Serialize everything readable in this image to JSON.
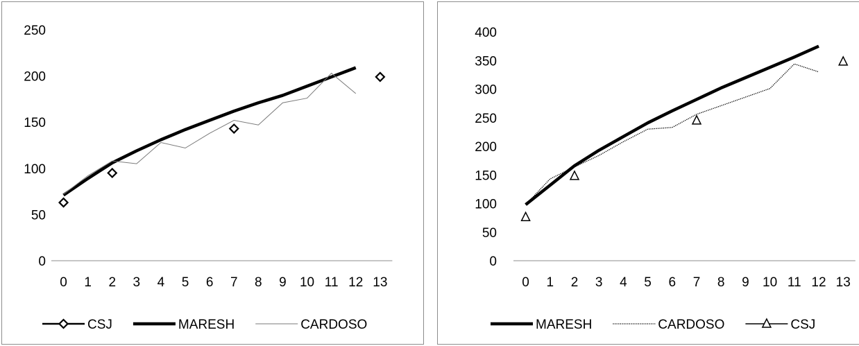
{
  "chart_data": [
    {
      "type": "line",
      "x": [
        0,
        1,
        2,
        3,
        4,
        5,
        6,
        7,
        8,
        9,
        10,
        11,
        12,
        13
      ],
      "xticks": [
        "0",
        "1",
        "2",
        "3",
        "4",
        "5",
        "6",
        "7",
        "8",
        "9",
        "10",
        "11",
        "12",
        "13"
      ],
      "ylim": [
        0,
        250
      ],
      "yticks": [
        "0",
        "50",
        "100",
        "150",
        "200",
        "250"
      ],
      "grid": false,
      "legend_position": "bottom",
      "series": [
        {
          "name": "CSJ",
          "style": "markers-diamond",
          "x": [
            0,
            2,
            7,
            13
          ],
          "values": [
            63,
            95,
            143,
            199
          ]
        },
        {
          "name": "MARESH",
          "style": "thick-line",
          "x": [
            0,
            1,
            2,
            3,
            4,
            5,
            6,
            7,
            8,
            9,
            10,
            11,
            12
          ],
          "values": [
            71,
            89,
            106,
            119,
            131,
            142,
            152,
            162,
            171,
            179,
            189,
            199,
            209
          ]
        },
        {
          "name": "CARDOSO",
          "style": "thin-line",
          "x": [
            0,
            1,
            2,
            3,
            4,
            5,
            6,
            7,
            8,
            9,
            10,
            11,
            12
          ],
          "values": [
            72,
            92,
            108,
            105,
            128,
            122,
            138,
            152,
            147,
            171,
            176,
            203,
            181
          ]
        }
      ],
      "legend": [
        "CSJ",
        "MARESH",
        "CARDOSO"
      ]
    },
    {
      "type": "line",
      "x": [
        0,
        1,
        2,
        3,
        4,
        5,
        6,
        7,
        8,
        9,
        10,
        11,
        12,
        13
      ],
      "xticks": [
        "0",
        "1",
        "2",
        "3",
        "4",
        "5",
        "6",
        "7",
        "8",
        "9",
        "10",
        "11",
        "12",
        "13"
      ],
      "ylim": [
        0,
        400
      ],
      "yticks": [
        "0",
        "50",
        "100",
        "150",
        "200",
        "250",
        "300",
        "350",
        "400"
      ],
      "grid": false,
      "legend_position": "bottom",
      "series": [
        {
          "name": "MARESH",
          "style": "thick-line",
          "x": [
            0,
            1,
            2,
            3,
            4,
            5,
            6,
            7,
            8,
            9,
            10,
            11,
            12
          ],
          "values": [
            98,
            132,
            166,
            193,
            217,
            241,
            262,
            282,
            302,
            320,
            338,
            356,
            375
          ]
        },
        {
          "name": "CARDOSO",
          "style": "dotted-line",
          "x": [
            0,
            1,
            2,
            3,
            4,
            5,
            6,
            7,
            8,
            9,
            10,
            11,
            12
          ],
          "values": [
            98,
            143,
            164,
            184,
            208,
            230,
            233,
            256,
            271,
            286,
            301,
            344,
            330
          ]
        },
        {
          "name": "CSJ",
          "style": "markers-triangle",
          "x": [
            0,
            2,
            7,
            13
          ],
          "values": [
            76,
            148,
            245,
            348
          ]
        }
      ],
      "legend": [
        "MARESH",
        "CARDOSO",
        "CSJ"
      ]
    }
  ]
}
